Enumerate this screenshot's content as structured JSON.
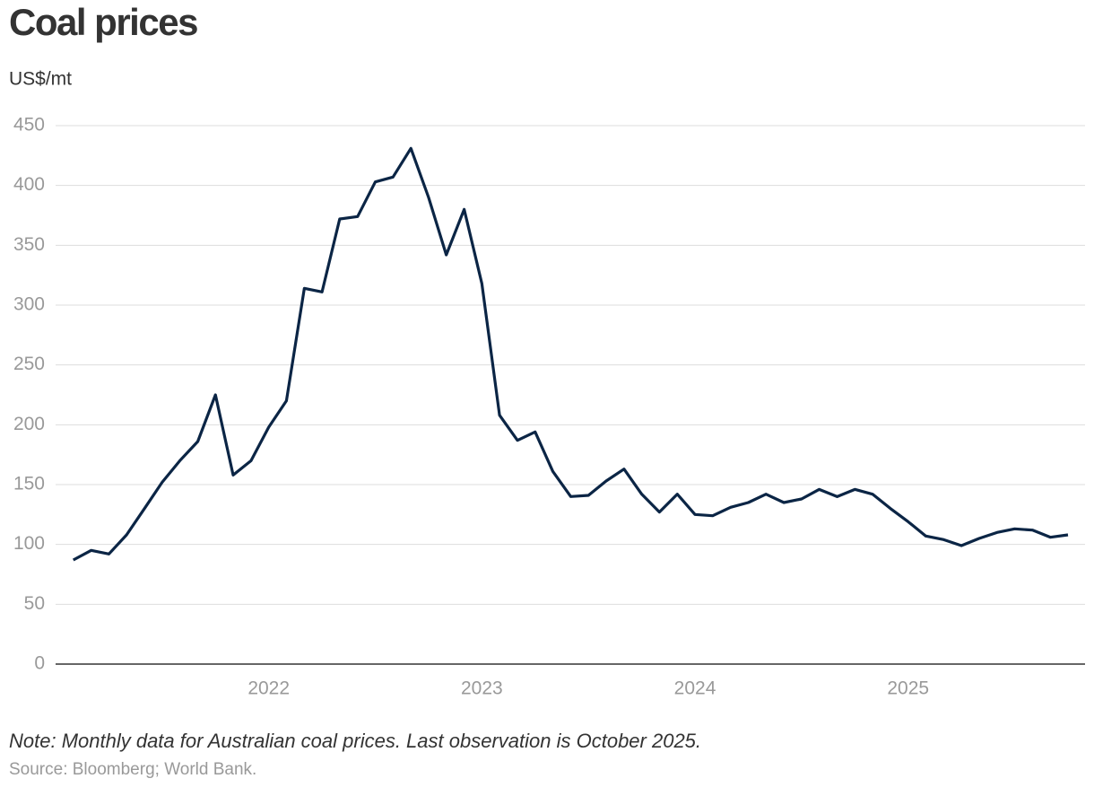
{
  "chart_data": {
    "type": "line",
    "title": "Coal prices",
    "subtitle": "US$/mt",
    "note": "Note: Monthly data for Australian coal prices. Last observation is October 2025.",
    "source": "Source: Bloomberg; World Bank.",
    "x": [
      2021.083,
      2021.167,
      2021.25,
      2021.333,
      2021.417,
      2021.5,
      2021.583,
      2021.667,
      2021.75,
      2021.833,
      2021.917,
      2022.0,
      2022.083,
      2022.167,
      2022.25,
      2022.333,
      2022.417,
      2022.5,
      2022.583,
      2022.667,
      2022.75,
      2022.833,
      2022.917,
      2023.0,
      2023.083,
      2023.167,
      2023.25,
      2023.333,
      2023.417,
      2023.5,
      2023.583,
      2023.667,
      2023.75,
      2023.833,
      2023.917,
      2024.0,
      2024.083,
      2024.167,
      2024.25,
      2024.333,
      2024.417,
      2024.5,
      2024.583,
      2024.667,
      2024.75,
      2024.833,
      2024.917,
      2025.0,
      2025.083,
      2025.167,
      2025.25,
      2025.333,
      2025.417,
      2025.5,
      2025.583,
      2025.667,
      2025.75
    ],
    "series": [
      {
        "name": "Australian coal",
        "color": "#0b2545",
        "values": [
          87,
          95,
          92,
          108,
          130,
          152,
          170,
          186,
          225,
          158,
          170,
          198,
          220,
          314,
          311,
          372,
          374,
          403,
          407,
          431,
          390,
          342,
          380,
          318,
          208,
          187,
          194,
          161,
          140,
          141,
          153,
          163,
          142,
          127,
          142,
          125,
          124,
          131,
          135,
          142,
          135,
          138,
          146,
          140,
          146,
          142,
          130,
          119,
          107,
          104,
          99,
          105,
          110,
          113,
          112,
          106,
          108
        ]
      }
    ],
    "xlim": [
      2021.0,
      2025.83
    ],
    "xticks": [
      2022,
      2023,
      2024,
      2025
    ],
    "ylim": [
      0,
      450
    ],
    "yticks": [
      0,
      50,
      100,
      150,
      200,
      250,
      300,
      350,
      400,
      450
    ],
    "grid": true
  }
}
